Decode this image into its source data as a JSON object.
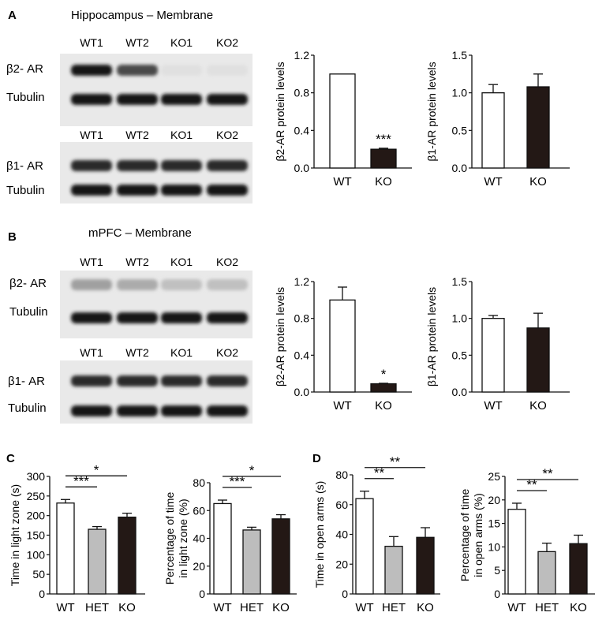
{
  "panels": {
    "A": {
      "letter": "A",
      "title": "Hippocampus – Membrane",
      "blot1": {
        "lanes": [
          "WT1",
          "WT2",
          "KO1",
          "KO2"
        ],
        "rows": [
          {
            "label": "β2- AR",
            "bands": [
              1.0,
              0.75,
              0.05,
              0.05
            ]
          },
          {
            "label": "Tubulin",
            "bands": [
              1.0,
              1.0,
              1.0,
              1.0
            ]
          }
        ]
      },
      "blot2": {
        "lanes": [
          "WT1",
          "WT2",
          "KO1",
          "KO2"
        ],
        "rows": [
          {
            "label": "β1- AR",
            "bands": [
              0.9,
              0.9,
              0.9,
              0.9
            ]
          },
          {
            "label": "Tubulin",
            "bands": [
              1.0,
              1.0,
              1.0,
              1.0
            ]
          }
        ]
      }
    },
    "B": {
      "letter": "B",
      "title": "mPFC – Membrane",
      "blot1": {
        "lanes": [
          "WT1",
          "WT2",
          "KO1",
          "KO2"
        ],
        "rows": [
          {
            "label": "β2- AR",
            "bands": [
              0.35,
              0.3,
              0.2,
              0.2
            ]
          },
          {
            "label": "Tubulin",
            "bands": [
              1.0,
              1.0,
              1.0,
              1.0
            ]
          }
        ]
      },
      "blot2": {
        "lanes": [
          "WT1",
          "WT2",
          "KO1",
          "KO2"
        ],
        "rows": [
          {
            "label": "β1- AR",
            "bands": [
              0.9,
              0.9,
              0.9,
              0.9
            ]
          },
          {
            "label": "Tubulin",
            "bands": [
              1.0,
              1.0,
              1.0,
              1.0
            ]
          }
        ]
      }
    },
    "C": {
      "letter": "C"
    },
    "D": {
      "letter": "D"
    }
  },
  "colors": {
    "wt": "#ffffff",
    "het": "#bdbdbd",
    "ko": "#231815",
    "axis": "#111111"
  },
  "chart_data": [
    {
      "id": "a-b2",
      "type": "bar",
      "categories": [
        "WT",
        "KO"
      ],
      "values": [
        1.0,
        0.2
      ],
      "errors": [
        0,
        0.01
      ],
      "ylabel": "β2-AR protein levels",
      "ylim": [
        0,
        1.2
      ],
      "yticks": [
        "0.0",
        "0.4",
        "0.8",
        "1.2"
      ],
      "ytick_values": [
        0,
        0.4,
        0.8,
        1.2
      ],
      "significance": [
        {
          "bar": 1,
          "text": "***"
        }
      ],
      "brackets": []
    },
    {
      "id": "a-b1",
      "type": "bar",
      "categories": [
        "WT",
        "KO"
      ],
      "values": [
        1.0,
        1.08
      ],
      "errors": [
        0.11,
        0.17
      ],
      "ylabel": "β1-AR protein levels",
      "ylim": [
        0,
        1.5
      ],
      "yticks": [
        "0.0",
        "0.5",
        "1.0",
        "1.5"
      ],
      "ytick_values": [
        0,
        0.5,
        1.0,
        1.5
      ],
      "significance": [],
      "brackets": []
    },
    {
      "id": "b-b2",
      "type": "bar",
      "categories": [
        "WT",
        "KO"
      ],
      "values": [
        1.0,
        0.09
      ],
      "errors": [
        0.14,
        0.005
      ],
      "ylabel": "β2-AR protein levels",
      "ylim": [
        0,
        1.2
      ],
      "yticks": [
        "0.0",
        "0.4",
        "0.8",
        "1.2"
      ],
      "ytick_values": [
        0,
        0.4,
        0.8,
        1.2
      ],
      "significance": [
        {
          "bar": 1,
          "text": "*"
        }
      ],
      "brackets": []
    },
    {
      "id": "b-b1",
      "type": "bar",
      "categories": [
        "WT",
        "KO"
      ],
      "values": [
        1.0,
        0.87
      ],
      "errors": [
        0.04,
        0.2
      ],
      "ylabel": "β1-AR protein levels",
      "ylim": [
        0,
        1.5
      ],
      "yticks": [
        "0.0",
        "0.5",
        "1.0",
        "1.5"
      ],
      "ytick_values": [
        0,
        0.5,
        1.0,
        1.5
      ],
      "significance": [],
      "brackets": []
    },
    {
      "id": "c-time",
      "type": "bar",
      "categories": [
        "WT",
        "HET",
        "KO"
      ],
      "values": [
        232,
        165,
        196
      ],
      "errors": [
        9,
        7,
        10
      ],
      "ylabel": "Time in light zone (s)",
      "ylim": [
        0,
        300
      ],
      "yticks": [
        "0",
        "50",
        "100",
        "150",
        "200",
        "250",
        "300"
      ],
      "ytick_values": [
        0,
        50,
        100,
        150,
        200,
        250,
        300
      ],
      "significance": [],
      "brackets": [
        {
          "from": 0,
          "to": 1,
          "level": 1,
          "text": "***"
        },
        {
          "from": 0,
          "to": 2,
          "level": 2,
          "text": "*"
        }
      ]
    },
    {
      "id": "c-pct",
      "type": "bar",
      "categories": [
        "WT",
        "HET",
        "KO"
      ],
      "values": [
        65,
        46,
        54
      ],
      "errors": [
        2.5,
        2,
        3
      ],
      "ylabel": "Percentage of time\nin light zone (%)",
      "ylim": [
        0,
        80
      ],
      "yticks": [
        "0",
        "20",
        "40",
        "60",
        "80"
      ],
      "ytick_values": [
        0,
        20,
        40,
        60,
        80
      ],
      "significance": [],
      "brackets": [
        {
          "from": 0,
          "to": 1,
          "level": 1,
          "text": "***"
        },
        {
          "from": 0,
          "to": 2,
          "level": 2,
          "text": "*"
        }
      ]
    },
    {
      "id": "d-time",
      "type": "bar",
      "categories": [
        "WT",
        "HET",
        "KO"
      ],
      "values": [
        64,
        32,
        38
      ],
      "errors": [
        5,
        6.5,
        6.5
      ],
      "ylabel": "Time in open arms (s)",
      "ylim": [
        0,
        80
      ],
      "yticks": [
        "0",
        "20",
        "40",
        "60",
        "80"
      ],
      "ytick_values": [
        0,
        20,
        40,
        60,
        80
      ],
      "significance": [],
      "brackets": [
        {
          "from": 0,
          "to": 1,
          "level": 1,
          "text": "**"
        },
        {
          "from": 0,
          "to": 2,
          "level": 2,
          "text": "**"
        }
      ]
    },
    {
      "id": "d-pct",
      "type": "bar",
      "categories": [
        "WT",
        "HET",
        "KO"
      ],
      "values": [
        18,
        9,
        10.7
      ],
      "errors": [
        1.3,
        1.8,
        1.8
      ],
      "ylabel": "Percentage of time\nin open arms (%)",
      "ylim": [
        0,
        25
      ],
      "yticks": [
        "0",
        "5",
        "10",
        "15",
        "20",
        "25"
      ],
      "ytick_values": [
        0,
        5,
        10,
        15,
        20,
        25
      ],
      "significance": [],
      "brackets": [
        {
          "from": 0,
          "to": 1,
          "level": 1,
          "text": "**"
        },
        {
          "from": 0,
          "to": 2,
          "level": 2,
          "text": "**"
        }
      ]
    }
  ]
}
